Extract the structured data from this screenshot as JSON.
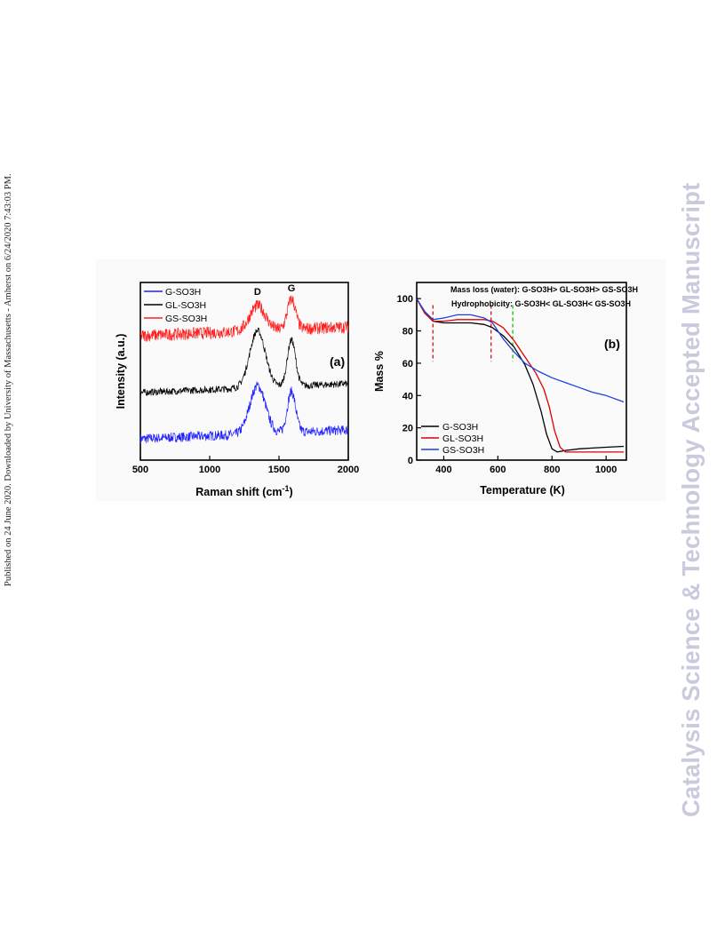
{
  "side_note": "Published on 24 June 2020. Downloaded by University of Massachusetts - Amherst on 6/24/2020 7:43:03 PM.",
  "journal_mark": "Catalysis Science & Technology Accepted Manuscript",
  "chart_data": [
    {
      "type": "line",
      "panel_label": "(a)",
      "xlabel": "Raman shift (cm",
      "xlabel_sup": "-1",
      "xlabel_end": ")",
      "ylabel": "Intensity (a.u.)",
      "xlim": [
        500,
        2000
      ],
      "xticks": [
        500,
        1000,
        1500,
        2000
      ],
      "yticks": false,
      "legend_position": "top-left",
      "annotations": [
        {
          "text": "D",
          "x": 1345
        },
        {
          "text": "G",
          "x": 1590
        }
      ],
      "series": [
        {
          "name": "G-SO3H",
          "color": "#1f1fff",
          "baseline": 0.12,
          "d_peak": 0.27,
          "g_peak": 0.23,
          "noise": 0.028
        },
        {
          "name": "GL-SO3H",
          "color": "#000000",
          "baseline": 0.38,
          "d_peak": 0.32,
          "g_peak": 0.26,
          "noise": 0.02
        },
        {
          "name": "GS-SO3H",
          "color": "#ff1f1f",
          "baseline": 0.7,
          "d_peak": 0.14,
          "g_peak": 0.17,
          "noise": 0.035
        }
      ]
    },
    {
      "type": "line",
      "panel_label": "(b)",
      "xlabel": "Temperature (K)",
      "ylabel": "Mass %",
      "xlim": [
        300,
        1075
      ],
      "ylim": [
        0,
        110
      ],
      "xticks": [
        400,
        600,
        800,
        1000
      ],
      "yticks": [
        0,
        20,
        40,
        60,
        80,
        100
      ],
      "legend_position": "bottom-left",
      "annotations": [
        {
          "text": "Mass loss (water): G-SO3H> GL-SO3H> GS-SO3H"
        },
        {
          "text": "Hydrophobicity: G-SO3H< GL-SO3H< GS-SO3H"
        }
      ],
      "reference_lines": [
        {
          "x": 360,
          "color": "#cc0000"
        },
        {
          "x": 575,
          "color": "#cc0000"
        },
        {
          "x": 655,
          "color": "#00bb00"
        }
      ],
      "series": [
        {
          "name": "G-SO3H",
          "color": "#000000",
          "x": [
            300,
            330,
            360,
            400,
            450,
            500,
            550,
            580,
            620,
            660,
            700,
            730,
            760,
            780,
            800,
            820,
            850,
            900,
            950,
            1000,
            1065
          ],
          "y": [
            100,
            91,
            86,
            85,
            85,
            85,
            84,
            82,
            77,
            70,
            59,
            47,
            30,
            16,
            7,
            5,
            6,
            7,
            7.5,
            8,
            8.5
          ]
        },
        {
          "name": "GL-SO3H",
          "color": "#dd0000",
          "x": [
            300,
            330,
            360,
            400,
            450,
            500,
            550,
            580,
            620,
            660,
            700,
            740,
            770,
            790,
            810,
            830,
            850,
            900,
            1000,
            1065
          ],
          "y": [
            100,
            91,
            86,
            86,
            87,
            87,
            87,
            86,
            82,
            74,
            64,
            54,
            44,
            33,
            18,
            8,
            5,
            5,
            5,
            5
          ]
        },
        {
          "name": "GS-SO3H",
          "color": "#1f3fdd",
          "x": [
            300,
            330,
            360,
            400,
            450,
            500,
            550,
            580,
            620,
            660,
            700,
            750,
            800,
            850,
            900,
            950,
            1000,
            1065
          ],
          "y": [
            100,
            92,
            87,
            88,
            90,
            90,
            88,
            85,
            75,
            67,
            60,
            55,
            51,
            48,
            45,
            42,
            40,
            36
          ]
        }
      ]
    }
  ]
}
